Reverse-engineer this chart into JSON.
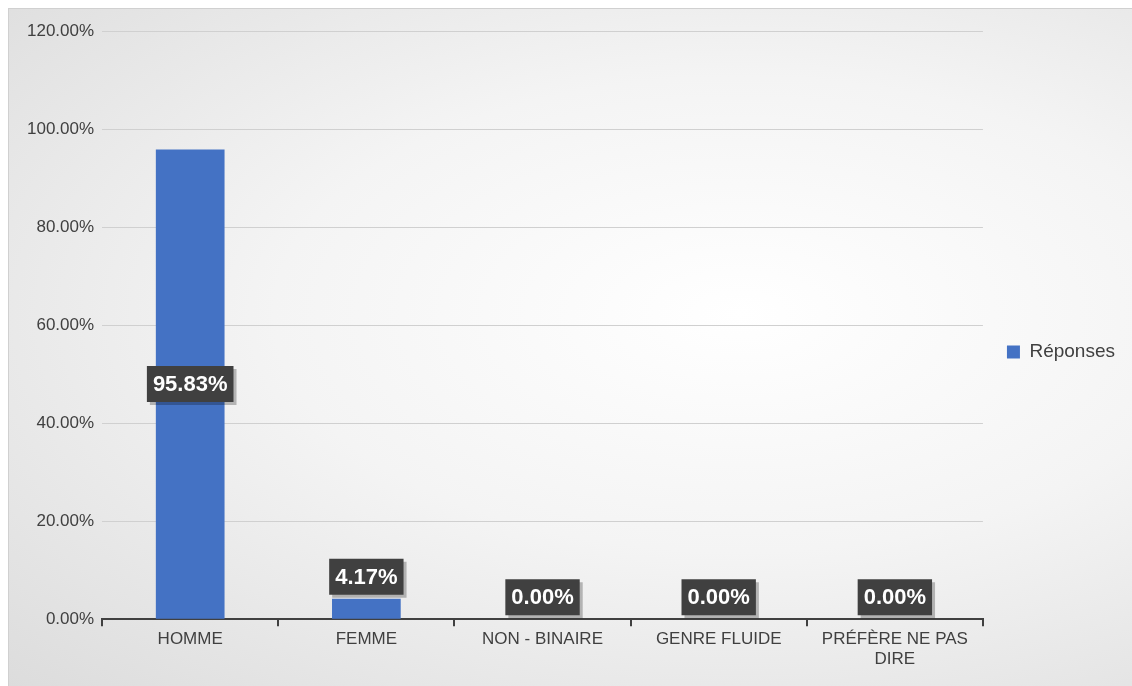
{
  "chart_data": {
    "type": "bar",
    "categories": [
      "HOMME",
      "FEMME",
      "NON - BINAIRE",
      "GENRE FLUIDE",
      "PRÉFÈRE NE PAS DIRE"
    ],
    "series": [
      {
        "name": "Réponses",
        "color": "#4472c4",
        "values": [
          95.83,
          4.17,
          0,
          0,
          0
        ],
        "value_labels": [
          "95.83%",
          "4.17%",
          "0.00%",
          "0.00%",
          "0.00%"
        ]
      }
    ],
    "ylim": [
      0,
      120
    ],
    "yticks": [
      {
        "value": 0,
        "label": "0.00%"
      },
      {
        "value": 20,
        "label": "20.00%"
      },
      {
        "value": 40,
        "label": "40.00%"
      },
      {
        "value": 60,
        "label": "60.00%"
      },
      {
        "value": 80,
        "label": "80.00%"
      },
      {
        "value": 100,
        "label": "100.00%"
      },
      {
        "value": 120,
        "label": "120.00%"
      }
    ],
    "grid": "y",
    "legend": "right"
  }
}
